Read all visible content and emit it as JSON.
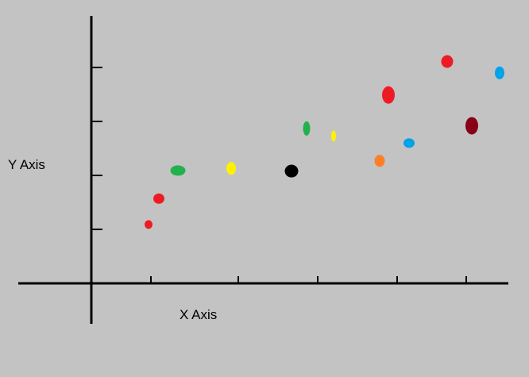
{
  "chart_data": {
    "type": "scatter",
    "title": "",
    "xlabel": "X Axis",
    "ylabel": "Y Axis",
    "xlim": [
      -0.9,
      5.2
    ],
    "ylim": [
      -0.7,
      4.7
    ],
    "grid": false,
    "legend": "none",
    "x_ticks": [
      0.75,
      1.85,
      2.85,
      3.85,
      4.72
    ],
    "y_ticks": [
      1,
      2,
      3,
      4
    ],
    "points": [
      {
        "x": 0.72,
        "y": 1.09,
        "color": "#ed1c24",
        "w": 10,
        "h": 11
      },
      {
        "x": 0.85,
        "y": 1.57,
        "color": "#ed1c24",
        "w": 14,
        "h": 13
      },
      {
        "x": 1.09,
        "y": 2.09,
        "color": "#22b14c",
        "w": 19,
        "h": 13
      },
      {
        "x": 1.76,
        "y": 2.13,
        "color": "#fff200",
        "w": 12,
        "h": 16
      },
      {
        "x": 2.52,
        "y": 2.08,
        "color": "#000000",
        "w": 17,
        "h": 16
      },
      {
        "x": 2.71,
        "y": 2.87,
        "color": "#22b14c",
        "w": 9,
        "h": 18
      },
      {
        "x": 3.05,
        "y": 2.73,
        "color": "#fff200",
        "w": 6,
        "h": 14
      },
      {
        "x": 3.63,
        "y": 2.27,
        "color": "#ff7f27",
        "w": 13,
        "h": 15
      },
      {
        "x": 3.74,
        "y": 3.49,
        "color": "#ed1c24",
        "w": 16,
        "h": 22
      },
      {
        "x": 4.0,
        "y": 2.6,
        "color": "#00a2e8",
        "w": 14,
        "h": 12
      },
      {
        "x": 4.48,
        "y": 4.11,
        "color": "#ed1c24",
        "w": 15,
        "h": 16
      },
      {
        "x": 4.79,
        "y": 2.92,
        "color": "#880015",
        "w": 16,
        "h": 22
      },
      {
        "x": 5.14,
        "y": 3.9,
        "color": "#00a2e8",
        "w": 12,
        "h": 16
      }
    ]
  },
  "colors": {
    "background": "#c3c3c3",
    "axis": "#000000"
  }
}
